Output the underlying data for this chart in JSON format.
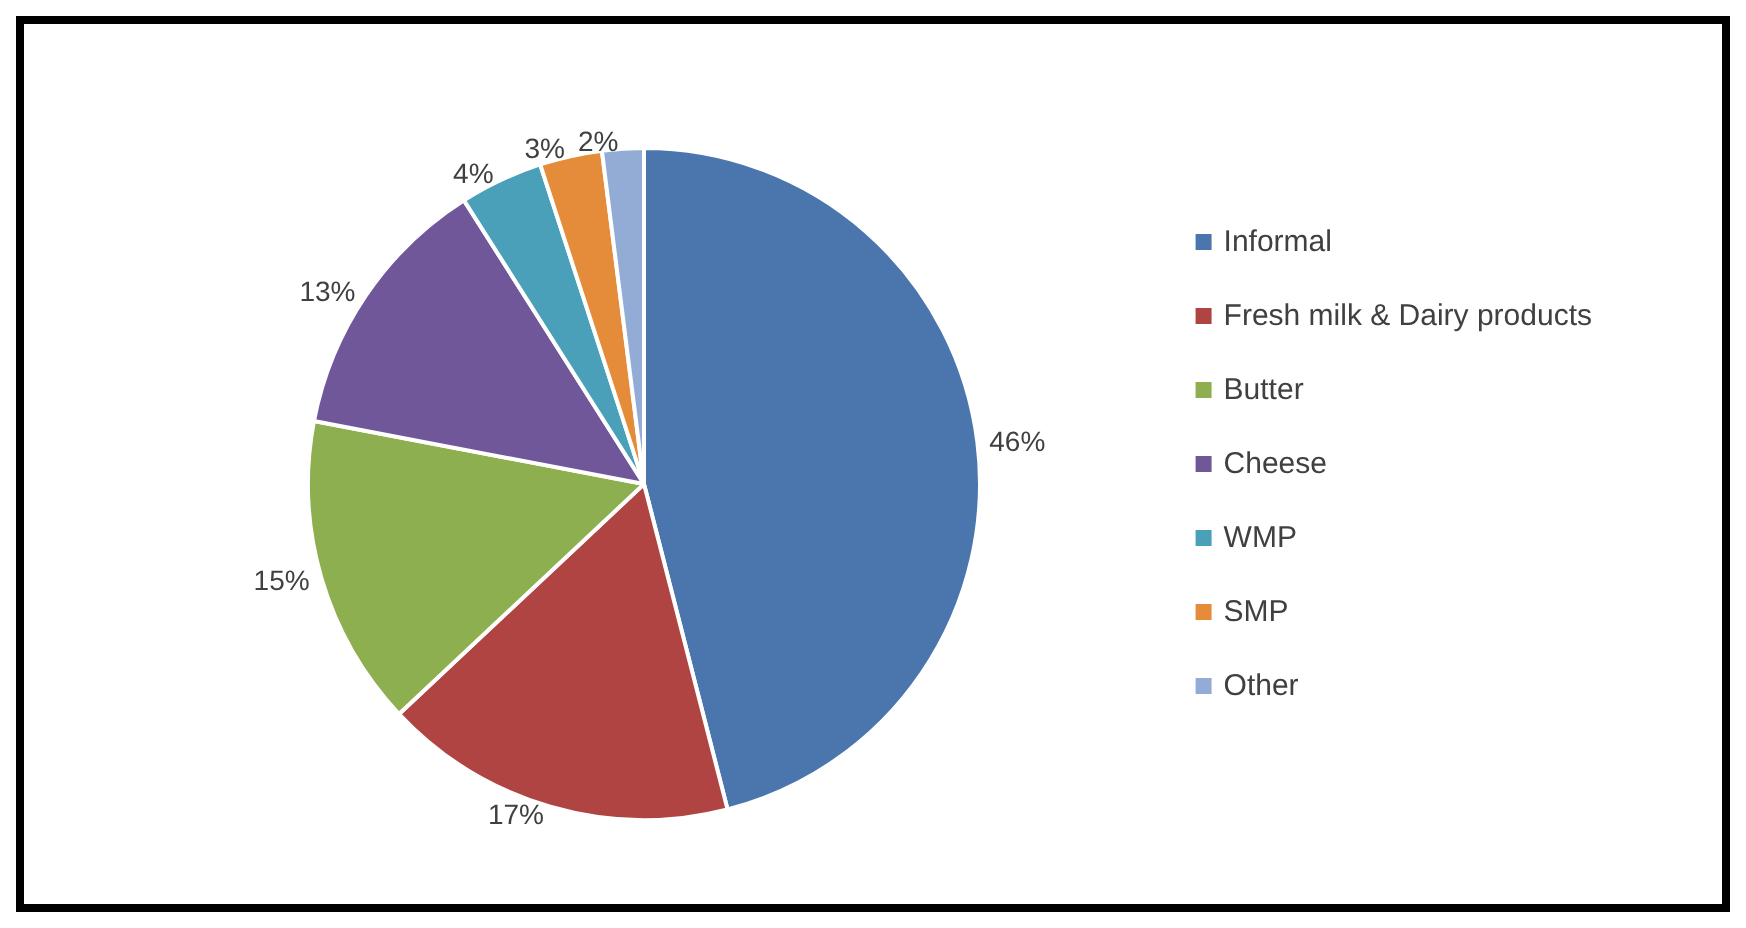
{
  "chart_data": {
    "type": "pie",
    "categories": [
      "Informal",
      "Fresh milk & Dairy products",
      "Butter",
      "Cheese",
      "WMP",
      "SMP",
      "Other"
    ],
    "values": [
      46,
      17,
      15,
      13,
      4,
      3,
      2
    ],
    "colors": [
      "#4a76ad",
      "#b04442",
      "#8daf4f",
      "#70579a",
      "#4aa0b8",
      "#e48c3a",
      "#93acd6"
    ],
    "value_labels": [
      "46%",
      "17%",
      "15%",
      "13%",
      "4%",
      "3%",
      "2%"
    ],
    "legend": "right"
  }
}
